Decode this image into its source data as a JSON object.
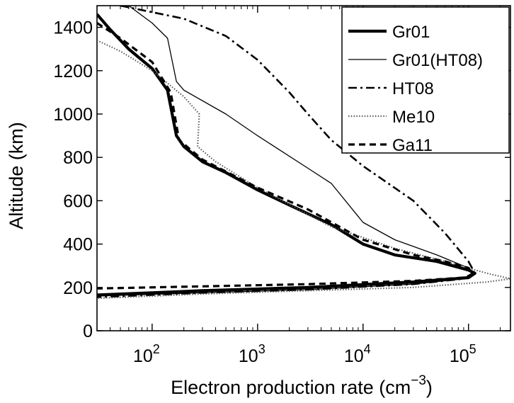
{
  "chart_data": {
    "type": "line",
    "title": "",
    "xlabel": "Electron production rate (cm",
    "xlabel_sup": "−3",
    "xlabel_close": ")",
    "ylabel": "Altitude (km)",
    "xscale": "log",
    "xlim": [
      30,
      250000
    ],
    "ylim": [
      0,
      1500
    ],
    "x_ticks": [
      {
        "value": 100,
        "base": "10",
        "exp": "2"
      },
      {
        "value": 1000,
        "base": "10",
        "exp": "3"
      },
      {
        "value": 10000,
        "base": "10",
        "exp": "4"
      },
      {
        "value": 100000,
        "base": "10",
        "exp": "5"
      }
    ],
    "y_ticks": [
      0,
      200,
      400,
      600,
      800,
      1000,
      1200,
      1400
    ],
    "grid": false,
    "legend_position": "top-right",
    "series": [
      {
        "name": "Gr01",
        "style": "solid-thick",
        "points": [
          [
            30,
            1460
          ],
          [
            40,
            1390
          ],
          [
            60,
            1300
          ],
          [
            100,
            1210
          ],
          [
            140,
            1110
          ],
          [
            170,
            900
          ],
          [
            200,
            850
          ],
          [
            300,
            780
          ],
          [
            500,
            730
          ],
          [
            1000,
            650
          ],
          [
            2000,
            580
          ],
          [
            5000,
            490
          ],
          [
            10000,
            400
          ],
          [
            20000,
            350
          ],
          [
            50000,
            320
          ],
          [
            100000,
            280
          ],
          [
            115000,
            265
          ],
          [
            100000,
            245
          ],
          [
            30000,
            225
          ],
          [
            3000,
            200
          ],
          [
            300,
            185
          ],
          [
            100,
            175
          ],
          [
            30,
            165
          ]
        ]
      },
      {
        "name": "Gr01(HT08)",
        "style": "solid-thin",
        "points": [
          [
            60,
            1500
          ],
          [
            100,
            1420
          ],
          [
            140,
            1350
          ],
          [
            170,
            1150
          ],
          [
            200,
            1110
          ],
          [
            500,
            1000
          ],
          [
            1000,
            900
          ],
          [
            3000,
            750
          ],
          [
            5000,
            680
          ],
          [
            10000,
            500
          ],
          [
            20000,
            420
          ],
          [
            50000,
            350
          ],
          [
            100000,
            290
          ],
          [
            110000,
            270
          ],
          [
            90000,
            240
          ],
          [
            30000,
            215
          ],
          [
            3000,
            190
          ],
          [
            300,
            175
          ],
          [
            100,
            168
          ],
          [
            30,
            160
          ]
        ]
      },
      {
        "name": "HT08",
        "style": "dash-dot",
        "points": [
          [
            50,
            1500
          ],
          [
            200,
            1440
          ],
          [
            500,
            1360
          ],
          [
            1000,
            1250
          ],
          [
            2000,
            1100
          ],
          [
            3000,
            1000
          ],
          [
            5000,
            880
          ],
          [
            10000,
            760
          ],
          [
            30000,
            600
          ],
          [
            60000,
            450
          ],
          [
            100000,
            320
          ],
          [
            115000,
            265
          ],
          [
            90000,
            240
          ],
          [
            30000,
            215
          ],
          [
            3000,
            190
          ],
          [
            300,
            175
          ],
          [
            100,
            165
          ],
          [
            30,
            155
          ]
        ]
      },
      {
        "name": "Me10",
        "style": "dotted",
        "points": [
          [
            30,
            1340
          ],
          [
            50,
            1290
          ],
          [
            100,
            1200
          ],
          [
            150,
            1130
          ],
          [
            200,
            1080
          ],
          [
            280,
            1000
          ],
          [
            270,
            850
          ],
          [
            400,
            780
          ],
          [
            1000,
            660
          ],
          [
            5000,
            480
          ],
          [
            20000,
            380
          ],
          [
            60000,
            320
          ],
          [
            150000,
            265
          ],
          [
            250000,
            240
          ],
          [
            150000,
            225
          ],
          [
            30000,
            200
          ],
          [
            3000,
            185
          ],
          [
            300,
            170
          ],
          [
            100,
            160
          ],
          [
            30,
            150
          ]
        ]
      },
      {
        "name": "Ga11",
        "style": "dashed",
        "points": [
          [
            30,
            1420
          ],
          [
            50,
            1350
          ],
          [
            100,
            1240
          ],
          [
            150,
            1100
          ],
          [
            180,
            880
          ],
          [
            300,
            790
          ],
          [
            1000,
            660
          ],
          [
            3000,
            560
          ],
          [
            10000,
            420
          ],
          [
            30000,
            350
          ],
          [
            60000,
            320
          ],
          [
            100000,
            290
          ],
          [
            110000,
            260
          ],
          [
            90000,
            245
          ],
          [
            30000,
            230
          ],
          [
            3000,
            215
          ],
          [
            300,
            205
          ],
          [
            30,
            195
          ]
        ]
      }
    ]
  }
}
